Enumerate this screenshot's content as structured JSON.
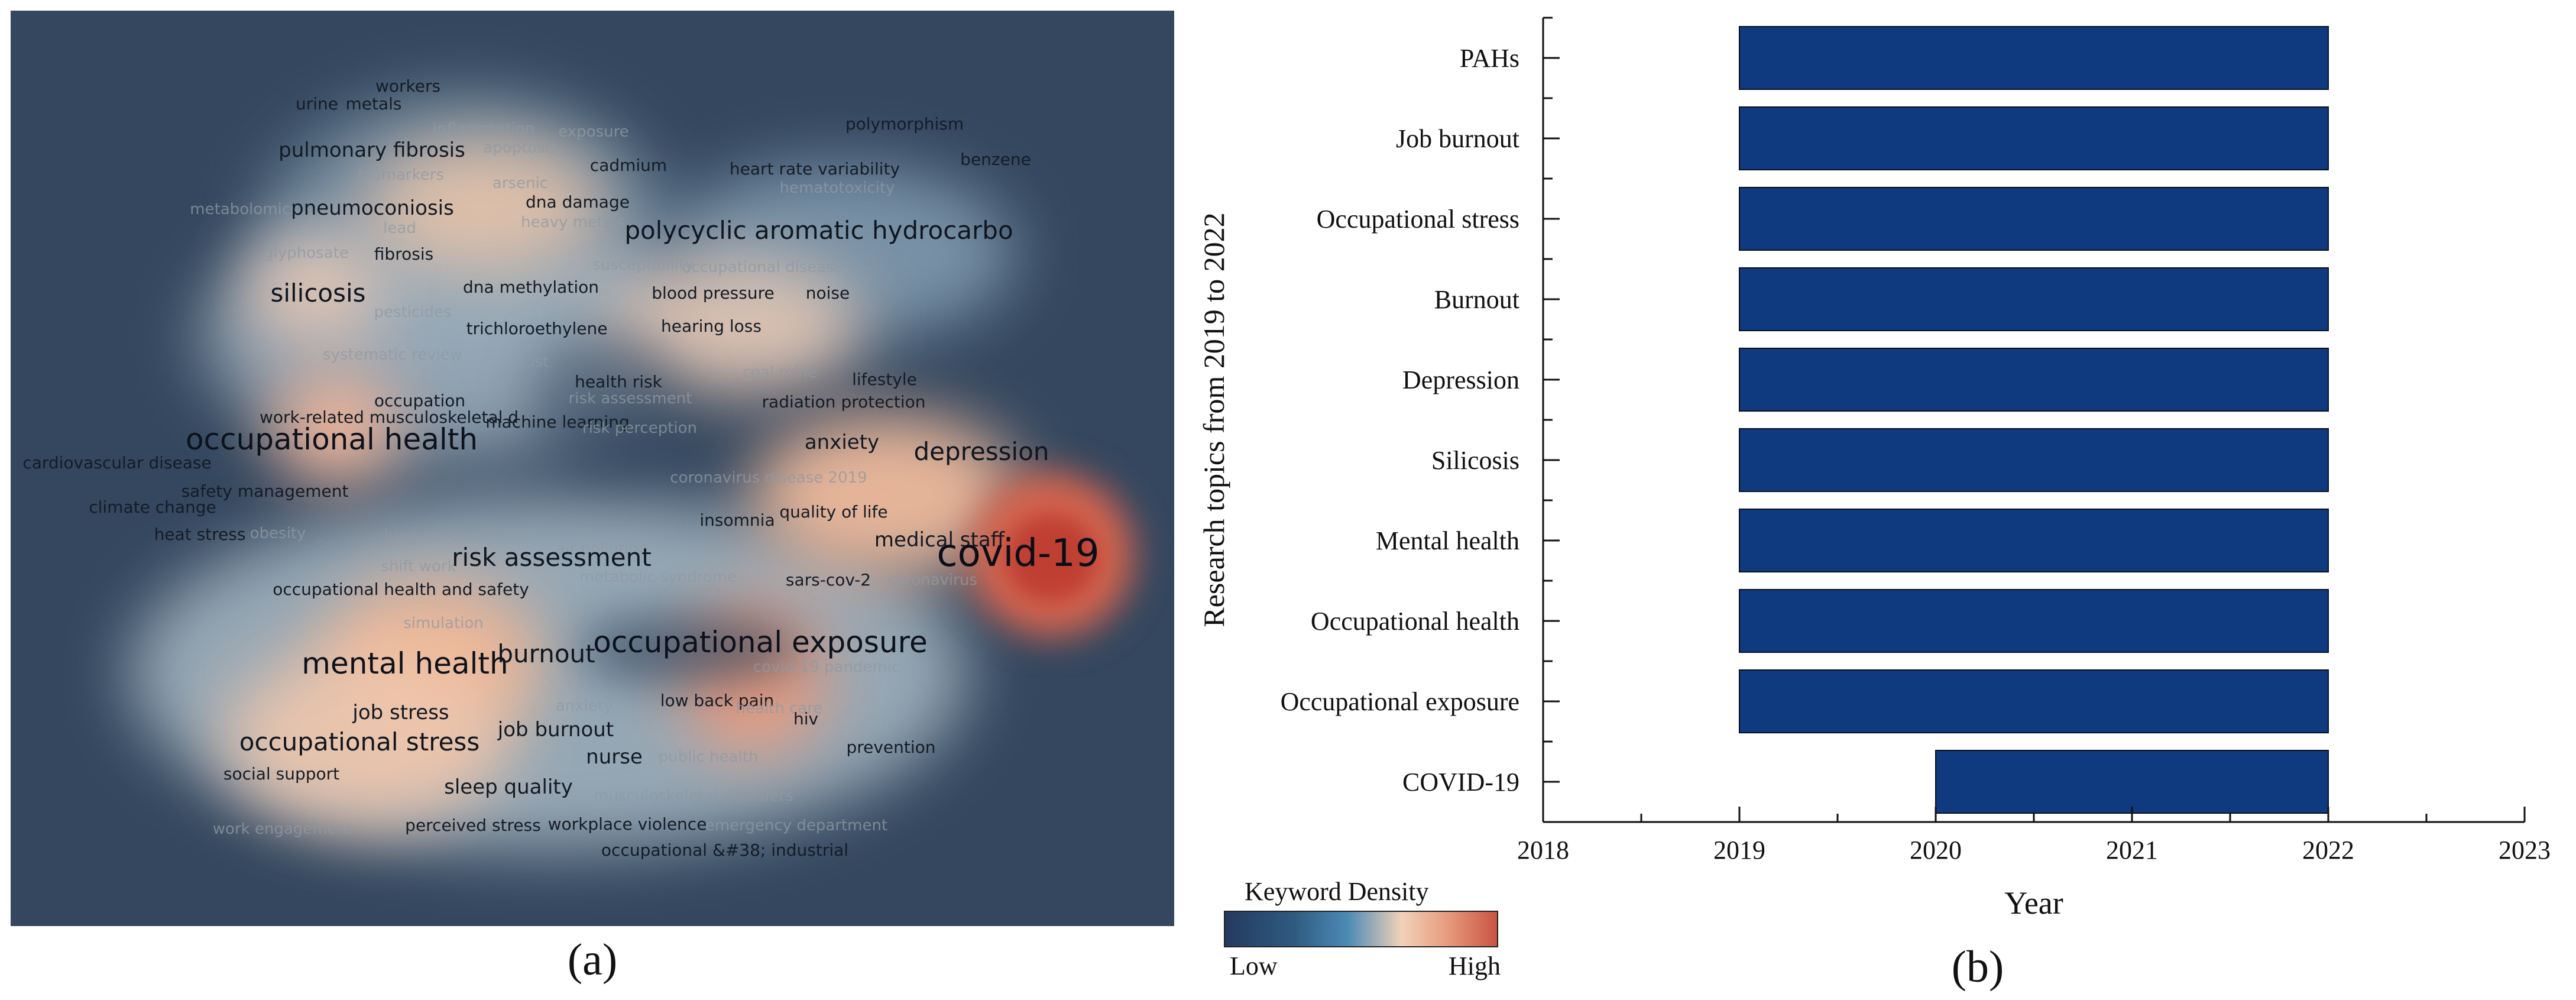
{
  "panel_a": {
    "caption": "(a)",
    "colors": {
      "background": "#34475f",
      "low": "#2f5a80",
      "mid": "#f1d2b8",
      "high": "#c95443"
    },
    "keywords": [
      {
        "text": "workers",
        "weight": 1
      },
      {
        "text": "urine",
        "weight": 1
      },
      {
        "text": "metals",
        "weight": 1
      },
      {
        "text": "polymorphism",
        "weight": 1
      },
      {
        "text": "inflammation",
        "weight": 0
      },
      {
        "text": "exposure",
        "weight": 0
      },
      {
        "text": "pulmonary fibrosis",
        "weight": 2
      },
      {
        "text": "apoptosis",
        "weight": 0
      },
      {
        "text": "cadmium",
        "weight": 1
      },
      {
        "text": "heart rate variability",
        "weight": 1
      },
      {
        "text": "benzene",
        "weight": 1
      },
      {
        "text": "biomarkers",
        "weight": 0
      },
      {
        "text": "arsenic",
        "weight": 0
      },
      {
        "text": "hematotoxicity",
        "weight": 0
      },
      {
        "text": "metabolomics",
        "weight": 0
      },
      {
        "text": "pneumoconiosis",
        "weight": 2
      },
      {
        "text": "dna damage",
        "weight": 1
      },
      {
        "text": "heavy metals",
        "weight": 0
      },
      {
        "text": "lead",
        "weight": 0
      },
      {
        "text": "polycyclic aromatic hydrocarbo",
        "weight": 3
      },
      {
        "text": "glyphosate",
        "weight": 0
      },
      {
        "text": "fibrosis",
        "weight": 1
      },
      {
        "text": "susceptibility",
        "weight": 0
      },
      {
        "text": "occupational disease",
        "weight": 0
      },
      {
        "text": "silicosis",
        "weight": 3
      },
      {
        "text": "dna methylation",
        "weight": 1
      },
      {
        "text": "blood pressure",
        "weight": 1
      },
      {
        "text": "noise",
        "weight": 1
      },
      {
        "text": "pesticides",
        "weight": 0
      },
      {
        "text": "trichloroethylene",
        "weight": 1
      },
      {
        "text": "hearing loss",
        "weight": 1
      },
      {
        "text": "systematic review",
        "weight": 0
      },
      {
        "text": "dust",
        "weight": 0
      },
      {
        "text": "health risk",
        "weight": 1
      },
      {
        "text": "coal mine",
        "weight": 0
      },
      {
        "text": "lifestyle",
        "weight": 1
      },
      {
        "text": "occupation",
        "weight": 1
      },
      {
        "text": "risk assessment",
        "weight": 0
      },
      {
        "text": "work-related musculoskeletal d",
        "weight": 1
      },
      {
        "text": "radiation protection",
        "weight": 1
      },
      {
        "text": "machine learning",
        "weight": 1
      },
      {
        "text": "risk perception",
        "weight": 0
      },
      {
        "text": "occupational health",
        "weight": 4
      },
      {
        "text": "anxiety",
        "weight": 2
      },
      {
        "text": "depression",
        "weight": 3
      },
      {
        "text": "cardiovascular disease",
        "weight": 1
      },
      {
        "text": "coronavirus disease 2019",
        "weight": 0
      },
      {
        "text": "safety management",
        "weight": 1
      },
      {
        "text": "climate change",
        "weight": 1
      },
      {
        "text": "quality of life",
        "weight": 1
      },
      {
        "text": "heat stress",
        "weight": 1
      },
      {
        "text": "obesity",
        "weight": 0
      },
      {
        "text": "insomnia",
        "weight": 1
      },
      {
        "text": "medical staff",
        "weight": 2
      },
      {
        "text": "lung cancer",
        "weight": 0
      },
      {
        "text": "interaction",
        "weight": 0
      },
      {
        "text": "air pollution",
        "weight": 0
      },
      {
        "text": "covid-19",
        "weight": 5
      },
      {
        "text": "shift work",
        "weight": 0
      },
      {
        "text": "risk assessment",
        "weight": 3
      },
      {
        "text": "metabolic syndrome",
        "weight": 0
      },
      {
        "text": "sars-cov-2",
        "weight": 1
      },
      {
        "text": "coronavirus",
        "weight": 0
      },
      {
        "text": "occupational health and safety",
        "weight": 1
      },
      {
        "text": "simulation",
        "weight": 0
      },
      {
        "text": "occupational exposure",
        "weight": 4
      },
      {
        "text": "mental health",
        "weight": 4
      },
      {
        "text": "burnout",
        "weight": 3
      },
      {
        "text": "covid-19 pandemic",
        "weight": 0
      },
      {
        "text": "low back pain",
        "weight": 1
      },
      {
        "text": "job stress",
        "weight": 2
      },
      {
        "text": "anxiety",
        "weight": 0
      },
      {
        "text": "health care",
        "weight": 0
      },
      {
        "text": "occupational stress",
        "weight": 3
      },
      {
        "text": "job burnout",
        "weight": 2
      },
      {
        "text": "hiv",
        "weight": 1
      },
      {
        "text": "prevention",
        "weight": 1
      },
      {
        "text": "social support",
        "weight": 1
      },
      {
        "text": "nurse",
        "weight": 2
      },
      {
        "text": "public health",
        "weight": 0
      },
      {
        "text": "sleep quality",
        "weight": 2
      },
      {
        "text": "musculoskeletal disorders",
        "weight": 0
      },
      {
        "text": "work engagement",
        "weight": 0
      },
      {
        "text": "perceived stress",
        "weight": 1
      },
      {
        "text": "workplace violence",
        "weight": 1
      },
      {
        "text": "emergency department",
        "weight": 0
      },
      {
        "text": "occupational &#38; industrial",
        "weight": 1
      }
    ]
  },
  "legend": {
    "title": "Keyword Density",
    "low": "Low",
    "high": "High"
  },
  "chart_data": {
    "type": "bar",
    "orientation": "horizontal",
    "caption": "(b)",
    "xlabel": "Year",
    "ylabel": "Research topics from 2019 to 2022",
    "xlim": [
      2018,
      2023
    ],
    "xticks": [
      "2018",
      "2019",
      "2020",
      "2021",
      "2022",
      "2023"
    ],
    "bar_color": "#0f3a7f",
    "categories": [
      "PAHs",
      "Job burnout",
      "Occupational stress",
      "Burnout",
      "Depression",
      "Silicosis",
      "Mental health",
      "Occupational health",
      "Occupational exposure",
      "COVID-19"
    ],
    "start": [
      2019,
      2019,
      2019,
      2019,
      2019,
      2019,
      2019,
      2019,
      2019,
      2020
    ],
    "end": [
      2022,
      2022,
      2022,
      2022,
      2022,
      2022,
      2022,
      2022,
      2022,
      2022
    ]
  }
}
